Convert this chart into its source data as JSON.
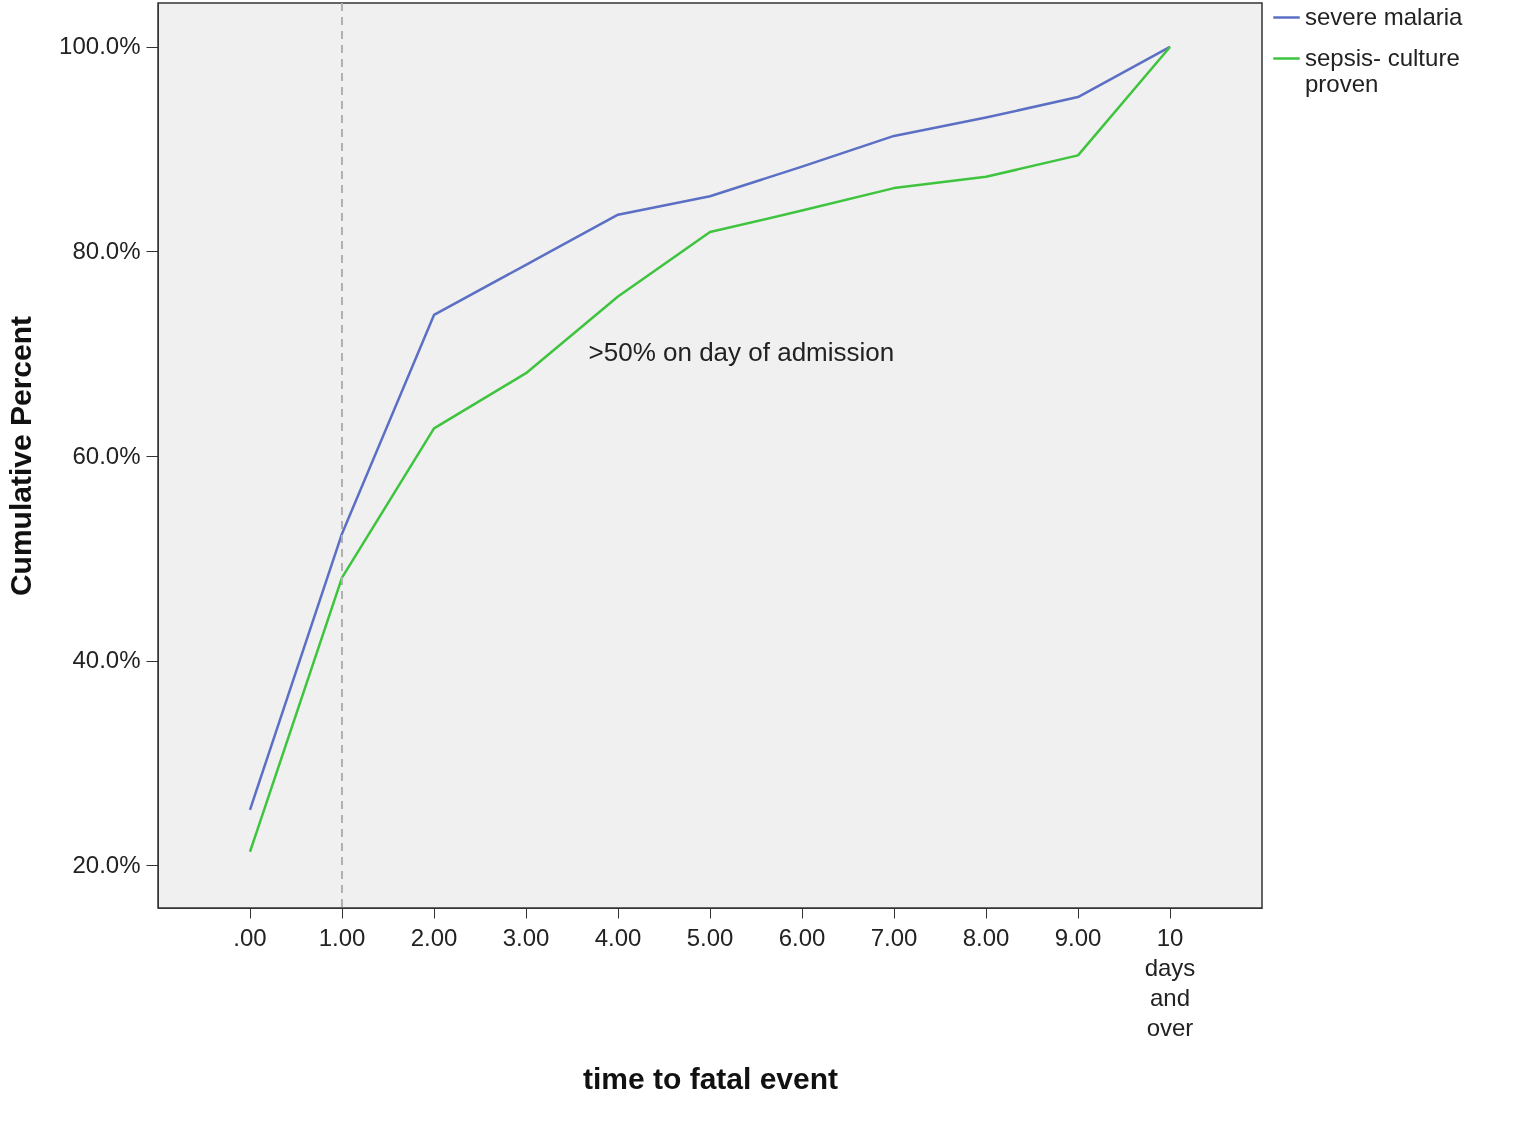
{
  "chart_data": {
    "type": "line",
    "xlabel": "time to fatal event",
    "ylabel": "Cumulative Percent",
    "categories": [
      ".00",
      "1.00",
      "2.00",
      "3.00",
      "4.00",
      "5.00",
      "6.00",
      "7.00",
      "8.00",
      "9.00",
      "10 days and over"
    ],
    "series": [
      {
        "name": "severe malaria",
        "color": "#5b6fc4",
        "values": [
          25.4,
          52.4,
          73.8,
          78.7,
          83.6,
          85.4,
          88.3,
          91.3,
          93.1,
          95.1,
          100
        ]
      },
      {
        "name": "sepsis- culture proven",
        "color": "#3ec43e",
        "values": [
          21.3,
          48.1,
          62.7,
          68.1,
          75.6,
          81.9,
          84.0,
          86.2,
          87.3,
          89.4,
          100
        ]
      }
    ],
    "ylim": [
      15.8,
      104.3
    ],
    "yticks": [
      {
        "value": 20,
        "label": "20.0%"
      },
      {
        "value": 40,
        "label": "40.0%"
      },
      {
        "value": 60,
        "label": "60.0%"
      },
      {
        "value": 80,
        "label": "80.0%"
      },
      {
        "value": 100,
        "label": "100.0%"
      }
    ],
    "ref_lines": [
      {
        "axis": "x",
        "value": "1.00",
        "color": "#b0b0b0",
        "line_style": "dashed"
      }
    ],
    "annotations": [
      ">50% on day of admission"
    ],
    "grid": false,
    "legend": "top right",
    "marker": "none",
    "line_style": "solid"
  }
}
